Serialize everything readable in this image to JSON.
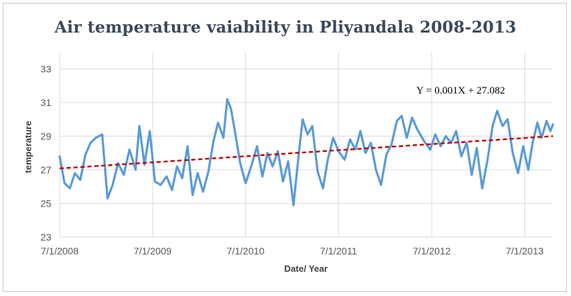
{
  "chart_data": {
    "type": "line",
    "title": "Air temperature vaiability in Pliyandala 2008-2013",
    "xlabel": "Date/ Year",
    "ylabel": "temperature",
    "xlim": [
      "2008-07-01",
      "2013-10-20"
    ],
    "ylim": [
      23,
      34
    ],
    "yticks": [
      23,
      25,
      27,
      29,
      31,
      33
    ],
    "xticks": [
      "7/1/2008",
      "7/1/2009",
      "7/1/2010",
      "7/1/2011",
      "7/1/2012",
      "7/1/2013"
    ],
    "grid": "vertical and horizontal gridlines",
    "series": [
      {
        "values_note": "",
        "color": "#5b9bd5",
        "points": [
          [
            "2008-07-01",
            27.8
          ],
          [
            "2008-07-20",
            26.2
          ],
          [
            "2008-08-10",
            25.9
          ],
          [
            "2008-08-30",
            26.8
          ],
          [
            "2008-09-20",
            26.4
          ],
          [
            "2008-10-10",
            27.9
          ],
          [
            "2008-10-30",
            28.6
          ],
          [
            "2008-11-20",
            28.9
          ],
          [
            "2008-12-15",
            29.1
          ],
          [
            "2009-01-05",
            25.3
          ],
          [
            "2009-01-25",
            26.1
          ],
          [
            "2009-02-15",
            27.4
          ],
          [
            "2009-03-10",
            26.7
          ],
          [
            "2009-04-01",
            28.2
          ],
          [
            "2009-04-25",
            27.0
          ],
          [
            "2009-05-10",
            29.6
          ],
          [
            "2009-05-30",
            27.3
          ],
          [
            "2009-06-20",
            29.3
          ],
          [
            "2009-07-10",
            26.3
          ],
          [
            "2009-08-01",
            26.1
          ],
          [
            "2009-08-25",
            26.6
          ],
          [
            "2009-09-15",
            25.8
          ],
          [
            "2009-10-05",
            27.2
          ],
          [
            "2009-10-25",
            26.5
          ],
          [
            "2009-11-15",
            28.4
          ],
          [
            "2009-12-05",
            25.5
          ],
          [
            "2009-12-25",
            26.8
          ],
          [
            "2010-01-15",
            25.7
          ],
          [
            "2010-02-05",
            26.9
          ],
          [
            "2010-02-25",
            28.7
          ],
          [
            "2010-03-15",
            29.8
          ],
          [
            "2010-04-05",
            28.9
          ],
          [
            "2010-04-20",
            31.2
          ],
          [
            "2010-05-05",
            30.6
          ],
          [
            "2010-05-20",
            29.3
          ],
          [
            "2010-06-10",
            27.4
          ],
          [
            "2010-07-01",
            26.2
          ],
          [
            "2010-07-25",
            27.3
          ],
          [
            "2010-08-15",
            28.4
          ],
          [
            "2010-09-05",
            26.6
          ],
          [
            "2010-09-25",
            28.0
          ],
          [
            "2010-10-15",
            27.2
          ],
          [
            "2010-11-05",
            28.1
          ],
          [
            "2010-11-25",
            26.3
          ],
          [
            "2010-12-15",
            27.5
          ],
          [
            "2011-01-05",
            24.9
          ],
          [
            "2011-01-25",
            27.8
          ],
          [
            "2011-02-10",
            30.0
          ],
          [
            "2011-03-01",
            29.1
          ],
          [
            "2011-03-20",
            29.6
          ],
          [
            "2011-04-10",
            26.9
          ],
          [
            "2011-05-01",
            25.9
          ],
          [
            "2011-05-20",
            27.6
          ],
          [
            "2011-06-10",
            28.9
          ],
          [
            "2011-07-01",
            28.1
          ],
          [
            "2011-07-25",
            27.6
          ],
          [
            "2011-08-15",
            28.8
          ],
          [
            "2011-09-05",
            28.2
          ],
          [
            "2011-09-25",
            29.3
          ],
          [
            "2011-10-15",
            28.0
          ],
          [
            "2011-11-05",
            28.6
          ],
          [
            "2011-11-25",
            27.0
          ],
          [
            "2011-12-15",
            26.1
          ],
          [
            "2012-01-05",
            27.9
          ],
          [
            "2012-01-25",
            28.5
          ],
          [
            "2012-02-15",
            29.9
          ],
          [
            "2012-03-05",
            30.2
          ],
          [
            "2012-03-25",
            28.9
          ],
          [
            "2012-04-15",
            30.1
          ],
          [
            "2012-05-05",
            29.4
          ],
          [
            "2012-06-01",
            28.7
          ],
          [
            "2012-06-25",
            28.2
          ],
          [
            "2012-07-15",
            29.1
          ],
          [
            "2012-08-05",
            28.4
          ],
          [
            "2012-08-25",
            29.0
          ],
          [
            "2012-09-15",
            28.6
          ],
          [
            "2012-10-05",
            29.3
          ],
          [
            "2012-10-25",
            27.8
          ],
          [
            "2012-11-15",
            28.6
          ],
          [
            "2012-12-05",
            26.7
          ],
          [
            "2012-12-25",
            28.3
          ],
          [
            "2013-01-15",
            25.9
          ],
          [
            "2013-02-05",
            27.6
          ],
          [
            "2013-02-25",
            29.6
          ],
          [
            "2013-03-15",
            30.5
          ],
          [
            "2013-04-05",
            29.6
          ],
          [
            "2013-04-25",
            30.0
          ],
          [
            "2013-05-15",
            28.0
          ],
          [
            "2013-06-05",
            26.8
          ],
          [
            "2013-06-25",
            28.4
          ],
          [
            "2013-07-15",
            27.0
          ],
          [
            "2013-08-01",
            28.6
          ],
          [
            "2013-08-20",
            29.8
          ],
          [
            "2013-09-05",
            28.9
          ],
          [
            "2013-09-25",
            29.9
          ],
          [
            "2013-10-10",
            29.3
          ],
          [
            "2013-10-20",
            29.7
          ]
        ]
      }
    ],
    "trendline": {
      "label": "Y = 0.001X + 27.082",
      "start": [
        "2008-07-01",
        27.08
      ],
      "end": [
        "2013-10-20",
        29.0
      ],
      "color": "#c00000",
      "style": "dashed"
    }
  }
}
